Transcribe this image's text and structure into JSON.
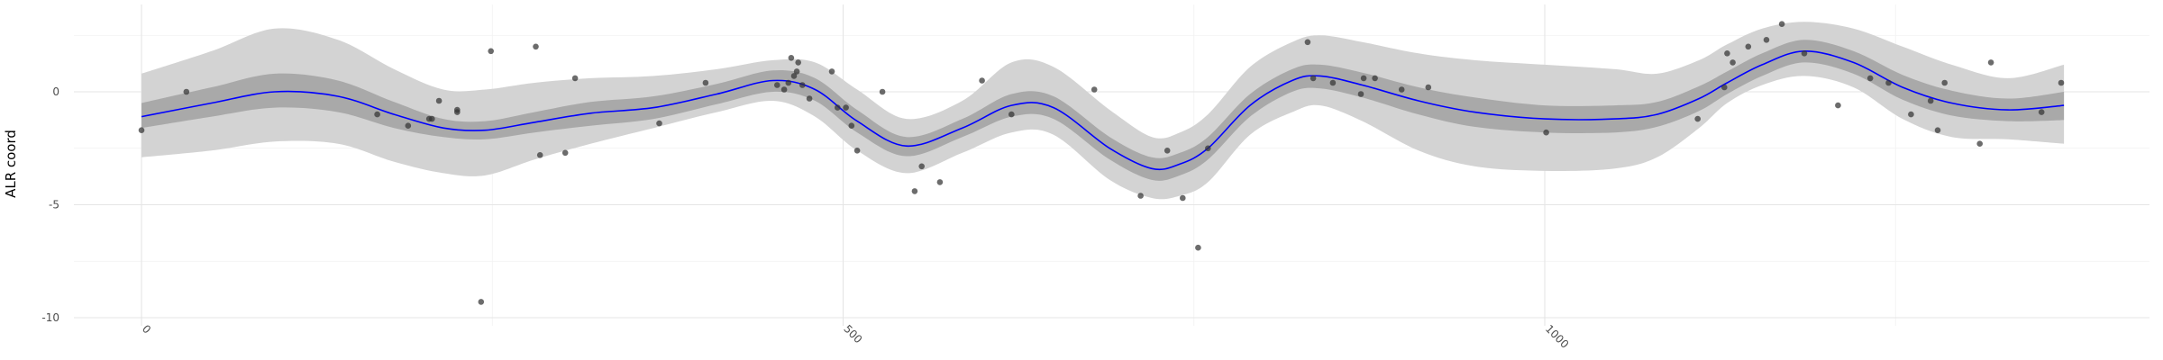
{
  "chart_data": {
    "type": "line",
    "title": "",
    "xlabel": "",
    "ylabel": "ALR coord",
    "xlim": [
      -50,
      1420
    ],
    "ylim": [
      -10.5,
      3.6
    ],
    "x_ticks": [
      0,
      500,
      1000
    ],
    "x_tick_labels": [
      "0",
      "500",
      "1000"
    ],
    "y_ticks": [
      -10,
      -5,
      0
    ],
    "y_tick_labels": [
      "-10",
      "-5",
      "0"
    ],
    "grid": true,
    "colors": {
      "line": "#0000ff",
      "inner_band": "#a9a9a9",
      "outer_band": "#d3d3d3",
      "points": "#333333"
    },
    "series": [
      {
        "type": "line",
        "x": [
          0,
          50,
          95,
          140,
          180,
          215,
          245,
          280,
          320,
          365,
          410,
          450,
          480,
          510,
          545,
          585,
          620,
          650,
          690,
          720,
          740,
          760,
          790,
          820,
          840,
          870,
          910,
          950,
          1000,
          1050,
          1080,
          1110,
          1130,
          1155,
          1185,
          1220,
          1255,
          1290,
          1330,
          1370
        ],
        "y": [
          -1.1,
          -0.5,
          0.0,
          -0.2,
          -1.0,
          -1.6,
          -1.7,
          -1.35,
          -0.95,
          -0.7,
          -0.1,
          0.5,
          0.1,
          -1.3,
          -2.4,
          -1.6,
          -0.6,
          -0.7,
          -2.5,
          -3.4,
          -3.2,
          -2.5,
          -0.6,
          0.5,
          0.7,
          0.3,
          -0.4,
          -0.9,
          -1.2,
          -1.2,
          -1.0,
          -0.3,
          0.4,
          1.2,
          1.8,
          1.3,
          0.2,
          -0.5,
          -0.8,
          -0.6
        ]
      },
      {
        "type": "band",
        "x": [
          0,
          50,
          95,
          140,
          180,
          215,
          245,
          280,
          320,
          365,
          410,
          450,
          480,
          510,
          545,
          585,
          620,
          650,
          690,
          720,
          740,
          760,
          790,
          820,
          840,
          870,
          910,
          950,
          1000,
          1050,
          1080,
          1110,
          1130,
          1155,
          1185,
          1220,
          1255,
          1290,
          1330,
          1370
        ],
        "low": [
          -1.6,
          -1.1,
          -0.7,
          -0.9,
          -1.6,
          -2.0,
          -2.1,
          -1.8,
          -1.5,
          -1.2,
          -0.55,
          0.0,
          -0.4,
          -1.8,
          -2.85,
          -2.0,
          -1.1,
          -1.2,
          -3.0,
          -3.9,
          -3.7,
          -3.0,
          -1.1,
          0.0,
          0.15,
          -0.25,
          -1.0,
          -1.55,
          -1.8,
          -1.8,
          -1.55,
          -0.85,
          -0.1,
          0.7,
          1.3,
          0.8,
          -0.35,
          -1.05,
          -1.3,
          -1.25
        ],
        "high": [
          -0.5,
          0.2,
          0.8,
          0.5,
          -0.45,
          -1.2,
          -1.3,
          -0.9,
          -0.45,
          -0.2,
          0.35,
          0.95,
          0.6,
          -0.8,
          -2.0,
          -1.2,
          -0.1,
          -0.2,
          -2.0,
          -2.9,
          -2.7,
          -2.0,
          -0.1,
          1.0,
          1.2,
          0.85,
          0.2,
          -0.25,
          -0.6,
          -0.6,
          -0.45,
          0.25,
          0.9,
          1.7,
          2.3,
          1.8,
          0.75,
          0.05,
          -0.3,
          0.0
        ]
      },
      {
        "type": "band",
        "x": [
          0,
          50,
          95,
          140,
          180,
          215,
          245,
          280,
          320,
          365,
          410,
          450,
          480,
          510,
          545,
          585,
          620,
          650,
          690,
          720,
          740,
          760,
          790,
          820,
          840,
          870,
          910,
          950,
          1000,
          1050,
          1080,
          1110,
          1130,
          1155,
          1185,
          1220,
          1255,
          1290,
          1330,
          1370
        ],
        "low": [
          -2.9,
          -2.6,
          -2.2,
          -2.3,
          -3.1,
          -3.6,
          -3.7,
          -3.0,
          -2.3,
          -1.6,
          -0.9,
          -0.4,
          -1.1,
          -2.6,
          -3.6,
          -2.7,
          -1.8,
          -1.9,
          -3.9,
          -4.7,
          -4.6,
          -4.0,
          -1.9,
          -0.9,
          -0.6,
          -1.3,
          -2.6,
          -3.3,
          -3.5,
          -3.4,
          -2.9,
          -1.6,
          -0.5,
          0.3,
          0.7,
          0.2,
          -1.2,
          -2.0,
          -2.1,
          -2.3
        ],
        "high": [
          0.8,
          1.8,
          2.8,
          2.3,
          1.0,
          0.1,
          0.1,
          0.4,
          0.6,
          0.7,
          1.0,
          1.4,
          1.3,
          0.1,
          -1.2,
          -0.4,
          1.3,
          1.1,
          -0.8,
          -2.0,
          -1.8,
          -1.0,
          1.1,
          2.2,
          2.5,
          2.2,
          1.7,
          1.4,
          1.2,
          1.0,
          0.8,
          1.4,
          2.1,
          2.8,
          3.1,
          2.8,
          2.0,
          1.2,
          0.6,
          1.2
        ]
      },
      {
        "type": "scatter",
        "x": [
          0,
          32,
          168,
          190,
          205,
          207,
          212,
          225,
          225,
          242,
          249,
          281,
          284,
          302,
          309,
          369,
          402,
          453,
          458,
          461,
          463,
          465,
          467,
          468,
          471,
          476,
          492,
          496,
          502,
          506,
          510,
          528,
          551,
          556,
          569,
          599,
          620,
          679,
          712,
          731,
          742,
          753,
          760,
          831,
          835,
          849,
          869,
          871,
          879,
          898,
          917,
          1001,
          1109,
          1128,
          1130,
          1134,
          1145,
          1158,
          1169,
          1185,
          1209,
          1232,
          1245,
          1261,
          1275,
          1280,
          1285,
          1310,
          1318,
          1354,
          1368
        ],
        "y": [
          -1.7,
          0.0,
          -1.0,
          -1.5,
          -1.2,
          -1.2,
          -0.4,
          -0.9,
          -0.8,
          -9.3,
          1.8,
          2.0,
          -2.8,
          -2.7,
          0.6,
          -1.4,
          0.4,
          0.3,
          0.1,
          0.4,
          1.5,
          0.7,
          0.9,
          1.3,
          0.3,
          -0.3,
          0.9,
          -0.7,
          -0.7,
          -1.5,
          -2.6,
          0.0,
          -4.4,
          -3.3,
          -4.0,
          0.5,
          -1.0,
          0.1,
          -4.6,
          -2.6,
          -4.7,
          -6.9,
          -2.5,
          2.2,
          0.6,
          0.4,
          -0.1,
          0.6,
          0.6,
          0.1,
          0.2,
          -1.8,
          -1.2,
          0.2,
          1.7,
          1.3,
          2.0,
          2.3,
          3.0,
          1.7,
          -0.6,
          0.6,
          0.4,
          -1.0,
          -0.4,
          -1.7,
          0.4,
          -2.3,
          1.3,
          -0.9,
          0.4
        ]
      }
    ]
  }
}
